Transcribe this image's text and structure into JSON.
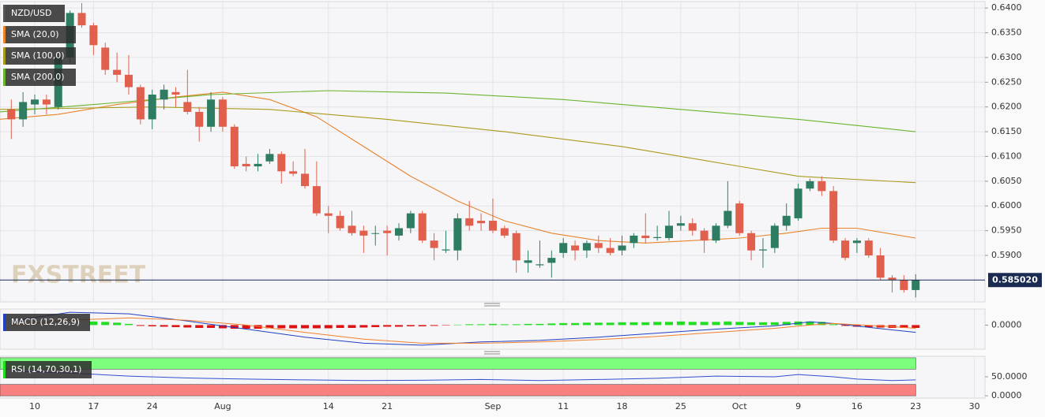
{
  "chart_data": [
    {
      "type": "candlestick",
      "title": "NZD/USD",
      "watermark": "FXSTREET",
      "up_color": "#2e7d62",
      "down_color": "#e0604d",
      "x": [
        -2,
        -1,
        0,
        1,
        2,
        3,
        4,
        5,
        6,
        7,
        8,
        9,
        10,
        11,
        12,
        13,
        14,
        15,
        16,
        17,
        18,
        19,
        20,
        21,
        22,
        23,
        24,
        25,
        26,
        27,
        28,
        29,
        30,
        31,
        32,
        33,
        34,
        35,
        36,
        37,
        38,
        39,
        40,
        41,
        42,
        43,
        44,
        45,
        46,
        47,
        48,
        49,
        50,
        51,
        52,
        53,
        54,
        55,
        56,
        57,
        58,
        59,
        60,
        61,
        62,
        63,
        64,
        65,
        66,
        67,
        68,
        69,
        70,
        71,
        72,
        73,
        74,
        75
      ],
      "open": [
        0.6195,
        0.6175,
        0.6205,
        0.6215,
        0.62,
        0.63,
        0.639,
        0.6365,
        0.632,
        0.6275,
        0.6265,
        0.624,
        0.6175,
        0.6215,
        0.623,
        0.621,
        0.619,
        0.616,
        0.6215,
        0.616,
        0.6085,
        0.608,
        0.609,
        0.6105,
        0.607,
        0.6065,
        0.604,
        0.5985,
        0.598,
        0.596,
        0.595,
        0.5945,
        0.595,
        0.594,
        0.5955,
        0.5985,
        0.593,
        0.591,
        0.591,
        0.5975,
        0.597,
        0.597,
        0.5955,
        0.5945,
        0.5885,
        0.588,
        0.5885,
        0.5905,
        0.592,
        0.591,
        0.5925,
        0.5915,
        0.591,
        0.5925,
        0.594,
        0.5935,
        0.5935,
        0.596,
        0.5965,
        0.595,
        0.593,
        0.596,
        0.6005,
        0.5945,
        0.591,
        0.5915,
        0.596,
        0.5975,
        0.6035,
        0.605,
        0.603,
        0.593,
        0.5925,
        0.593,
        0.59,
        0.5855,
        0.585,
        0.583
      ],
      "high": [
        0.6215,
        0.623,
        0.6225,
        0.6225,
        0.631,
        0.6395,
        0.641,
        0.637,
        0.633,
        0.631,
        0.6305,
        0.6245,
        0.6235,
        0.6245,
        0.624,
        0.6275,
        0.62,
        0.623,
        0.622,
        0.6165,
        0.61,
        0.6105,
        0.6115,
        0.611,
        0.609,
        0.6115,
        0.609,
        0.6,
        0.599,
        0.599,
        0.596,
        0.596,
        0.596,
        0.5965,
        0.599,
        0.599,
        0.5945,
        0.595,
        0.5985,
        0.601,
        0.5985,
        0.6015,
        0.596,
        0.595,
        0.591,
        0.593,
        0.591,
        0.5935,
        0.593,
        0.593,
        0.594,
        0.5935,
        0.594,
        0.5945,
        0.5985,
        0.596,
        0.599,
        0.598,
        0.5975,
        0.5955,
        0.5965,
        0.605,
        0.601,
        0.595,
        0.5935,
        0.5965,
        0.6005,
        0.6045,
        0.6055,
        0.606,
        0.604,
        0.5935,
        0.5935,
        0.5935,
        0.5915,
        0.586,
        0.586,
        0.5862
      ],
      "low": [
        0.6135,
        0.616,
        0.6185,
        0.6185,
        0.6195,
        0.629,
        0.636,
        0.6305,
        0.6265,
        0.625,
        0.6225,
        0.6165,
        0.6155,
        0.6195,
        0.62,
        0.6185,
        0.613,
        0.615,
        0.615,
        0.6075,
        0.607,
        0.607,
        0.6085,
        0.6045,
        0.606,
        0.6035,
        0.598,
        0.5945,
        0.595,
        0.594,
        0.5905,
        0.592,
        0.59,
        0.593,
        0.5945,
        0.5925,
        0.589,
        0.5905,
        0.589,
        0.595,
        0.595,
        0.5945,
        0.5935,
        0.5865,
        0.5865,
        0.5875,
        0.5855,
        0.5895,
        0.589,
        0.5895,
        0.5905,
        0.59,
        0.59,
        0.5915,
        0.5925,
        0.593,
        0.593,
        0.595,
        0.594,
        0.5905,
        0.5925,
        0.5955,
        0.594,
        0.589,
        0.5875,
        0.5905,
        0.595,
        0.597,
        0.603,
        0.602,
        0.5925,
        0.589,
        0.5905,
        0.5895,
        0.585,
        0.5825,
        0.5825,
        0.5815
      ],
      "close": [
        0.6175,
        0.621,
        0.6215,
        0.6205,
        0.63,
        0.639,
        0.6365,
        0.6325,
        0.6275,
        0.6265,
        0.624,
        0.6175,
        0.6225,
        0.6235,
        0.6225,
        0.619,
        0.616,
        0.6215,
        0.616,
        0.608,
        0.608,
        0.6085,
        0.6105,
        0.607,
        0.6065,
        0.604,
        0.5985,
        0.598,
        0.5955,
        0.5945,
        0.594,
        0.5945,
        0.5945,
        0.5955,
        0.5985,
        0.593,
        0.5915,
        0.5912,
        0.5975,
        0.596,
        0.5965,
        0.595,
        0.594,
        0.589,
        0.589,
        0.5882,
        0.5895,
        0.5925,
        0.591,
        0.5925,
        0.5915,
        0.5905,
        0.592,
        0.594,
        0.5935,
        0.5937,
        0.596,
        0.5965,
        0.595,
        0.593,
        0.596,
        0.599,
        0.5945,
        0.591,
        0.5912,
        0.596,
        0.598,
        0.6035,
        0.605,
        0.603,
        0.593,
        0.5895,
        0.593,
        0.59,
        0.5855,
        0.585,
        0.583,
        0.585
      ],
      "series": [
        {
          "name": "SMA (20,0)",
          "color": "#e8832a",
          "x": [
            -3,
            2,
            7,
            12,
            16,
            20,
            24,
            28,
            32,
            36,
            40,
            44,
            48,
            52,
            56,
            60,
            64,
            67,
            70,
            75
          ],
          "values": [
            0.6175,
            0.6185,
            0.6205,
            0.622,
            0.623,
            0.6215,
            0.618,
            0.612,
            0.606,
            0.601,
            0.597,
            0.5945,
            0.593,
            0.5925,
            0.593,
            0.5935,
            0.5945,
            0.5955,
            0.5955,
            0.5935
          ]
        },
        {
          "name": "SMA (100,0)",
          "color": "#a89a1c",
          "x": [
            -3,
            10,
            20,
            30,
            40,
            50,
            60,
            65,
            75
          ],
          "values": [
            0.6195,
            0.62,
            0.6195,
            0.6175,
            0.615,
            0.612,
            0.608,
            0.606,
            0.6047
          ]
        },
        {
          "name": "SMA (200,0)",
          "color": "#6ab42c",
          "x": [
            -3,
            5,
            15,
            25,
            35,
            45,
            55,
            65,
            75
          ],
          "values": [
            0.619,
            0.6205,
            0.6225,
            0.6233,
            0.6228,
            0.6215,
            0.6195,
            0.6175,
            0.615
          ]
        }
      ],
      "current_price": 0.58502,
      "current_price_label": "0.585020",
      "xlim": [
        -2.96,
        80.9
      ],
      "xticks": [
        {
          "value": 0,
          "label": "10"
        },
        {
          "value": 5,
          "label": "17"
        },
        {
          "value": 10,
          "label": "24"
        },
        {
          "value": 16,
          "label": "Aug"
        },
        {
          "value": 25,
          "label": "14"
        },
        {
          "value": 30,
          "label": "21"
        },
        {
          "value": 39,
          "label": "Sep"
        },
        {
          "value": 45,
          "label": "11"
        },
        {
          "value": 50,
          "label": "18"
        },
        {
          "value": 55,
          "label": "25"
        },
        {
          "value": 60,
          "label": "Oct"
        },
        {
          "value": 65,
          "label": "9"
        },
        {
          "value": 70,
          "label": "16"
        },
        {
          "value": 75,
          "label": "23"
        },
        {
          "value": 80,
          "label": "30"
        }
      ],
      "ylim": [
        0.5806,
        0.6413
      ],
      "yticks": [
        {
          "value": 0.59,
          "label": "0.5900"
        },
        {
          "value": 0.595,
          "label": "0.5950"
        },
        {
          "value": 0.6,
          "label": "0.6000"
        },
        {
          "value": 0.605,
          "label": "0.6050"
        },
        {
          "value": 0.61,
          "label": "0.6100"
        },
        {
          "value": 0.615,
          "label": "0.6150"
        },
        {
          "value": 0.62,
          "label": "0.6200"
        },
        {
          "value": 0.625,
          "label": "0.6250"
        },
        {
          "value": 0.63,
          "label": "0.6300"
        },
        {
          "value": 0.635,
          "label": "0.6350"
        },
        {
          "value": 0.64,
          "label": "0.6400"
        }
      ],
      "grid": true
    },
    {
      "type": "macd",
      "title": "MACD (12,26,9)",
      "title_color": "#2040c0",
      "histogram": [
        null,
        null,
        null,
        null,
        null,
        null,
        null,
        0.0009,
        0.0008,
        0.0006,
        0.0003,
        -0.0002,
        -0.0003,
        -0.0004,
        -0.0005,
        -0.0006,
        -0.0007,
        -0.0007,
        -0.0008,
        -0.0009,
        -0.0009,
        -0.0009,
        -0.0008,
        -0.0008,
        -0.0008,
        -0.0008,
        -0.0008,
        -0.0008,
        -0.0007,
        -0.0007,
        -0.0006,
        -0.0005,
        -0.0004,
        -0.0004,
        -0.0003,
        -0.0003,
        -0.0002,
        -0.0001,
        0.0001,
        0.0002,
        0.0002,
        0.0003,
        0.0002,
        0.0002,
        0.0003,
        0.0003,
        0.0004,
        0.0005,
        0.0005,
        0.0006,
        0.0006,
        0.0006,
        0.0007,
        0.0007,
        0.0007,
        0.0008,
        0.0008,
        0.0009,
        0.0008,
        0.0008,
        0.0008,
        0.0009,
        0.0008,
        0.0007,
        0.0007,
        0.0007,
        0.0008,
        0.0009,
        0.0009,
        0.0008,
        0.0002,
        -0.0002,
        -0.0004,
        -0.0005,
        -0.0006,
        -0.0007,
        -0.0007,
        -0.0007
      ],
      "histogram_colors": [
        "#22dd22",
        "#dd1111"
      ],
      "x": [
        -2,
        3,
        8,
        13,
        18,
        23,
        28,
        33,
        38,
        43,
        48,
        53,
        58,
        63,
        66,
        68,
        73,
        75
      ],
      "series": [
        {
          "name": "MACD",
          "color": "#2040c0",
          "values": [
            0.001,
            0.0032,
            0.0028,
            0.001,
            -0.001,
            -0.003,
            -0.0045,
            -0.005,
            -0.0042,
            -0.0038,
            -0.003,
            -0.002,
            -0.001,
            -0.0002,
            0.0008,
            0.0004,
            -0.0012,
            -0.0018
          ]
        },
        {
          "name": "Signal",
          "color": "#f08030",
          "values": [
            0.0,
            0.0012,
            0.0018,
            0.0012,
            0.0,
            -0.0018,
            -0.0035,
            -0.0045,
            -0.0045,
            -0.0042,
            -0.0036,
            -0.0028,
            -0.0018,
            -0.0008,
            0.0,
            0.0004,
            -0.0004,
            -0.0008
          ]
        }
      ],
      "ylim": [
        -0.006,
        0.004
      ],
      "yticks": [
        {
          "value": 0,
          "label": "0.0000"
        }
      ]
    },
    {
      "type": "rsi",
      "title": "RSI (14,70,30,1)",
      "title_color": "#22dd22",
      "bands": [
        {
          "from": 70,
          "to": 100,
          "color": "#7dff7d"
        },
        {
          "from": 0,
          "to": 30,
          "color": "#f88080"
        }
      ],
      "x": [
        -2,
        3,
        8,
        13,
        18,
        23,
        28,
        33,
        38,
        43,
        48,
        53,
        58,
        63,
        65,
        68,
        70,
        73,
        75
      ],
      "series": [
        {
          "name": "RSI",
          "color": "#3050d0",
          "values": [
            65,
            60,
            52,
            47,
            44,
            42,
            40,
            41,
            43,
            40,
            43,
            46,
            52,
            50,
            56,
            50,
            44,
            40,
            42
          ]
        }
      ],
      "ylim": [
        -6,
        104
      ],
      "yticks": [
        {
          "value": 0,
          "label": "0.0000"
        },
        {
          "value": 50,
          "label": "50.0000"
        }
      ]
    }
  ]
}
